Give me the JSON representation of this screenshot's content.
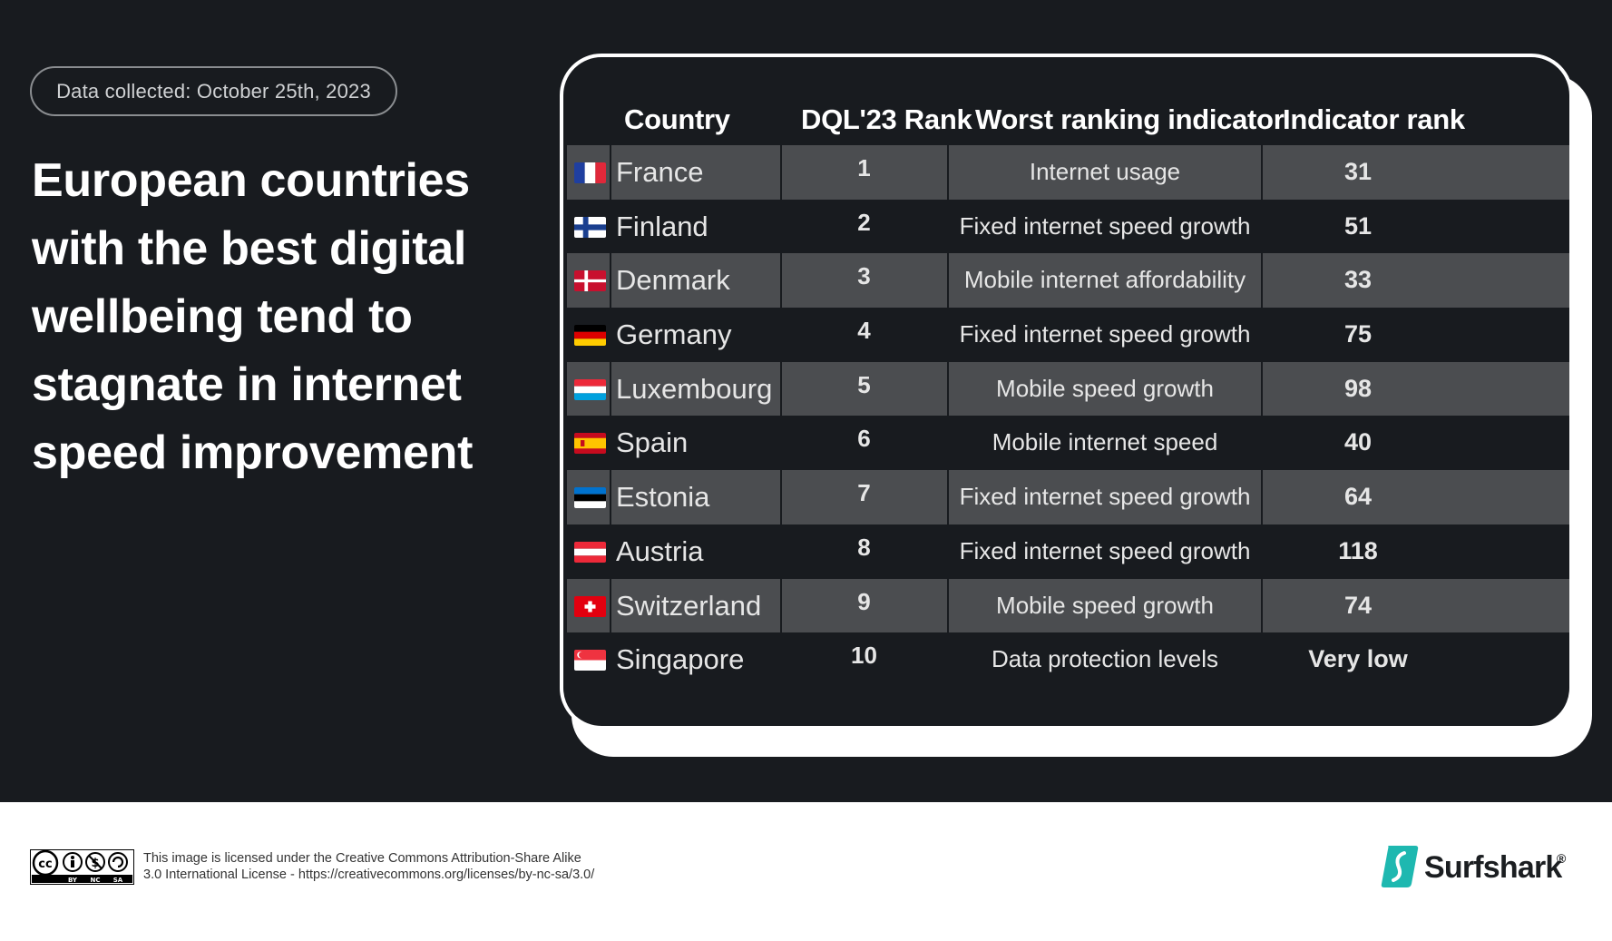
{
  "header": {
    "data_collected": "Data collected: October 25th, 2023",
    "headline_lines": [
      "European countries",
      "with the best digital",
      "wellbeing tend to",
      "stagnate in internet",
      "speed improvement"
    ]
  },
  "chart_data": {
    "type": "table",
    "columns": [
      "Country",
      "DQL'23 Rank",
      "Worst ranking indicator",
      "Indicator rank"
    ],
    "rows": [
      {
        "flag": "france-flag-icon",
        "country": "France",
        "rank": "1",
        "indicator": "Internet usage",
        "indicator_rank": "31"
      },
      {
        "flag": "finland-flag-icon",
        "country": "Finland",
        "rank": "2",
        "indicator": "Fixed internet speed growth",
        "indicator_rank": "51"
      },
      {
        "flag": "denmark-flag-icon",
        "country": "Denmark",
        "rank": "3",
        "indicator": "Mobile internet affordability",
        "indicator_rank": "33"
      },
      {
        "flag": "germany-flag-icon",
        "country": "Germany",
        "rank": "4",
        "indicator": "Fixed internet speed growth",
        "indicator_rank": "75"
      },
      {
        "flag": "luxembourg-flag-icon",
        "country": "Luxembourg",
        "rank": "5",
        "indicator": "Mobile speed growth",
        "indicator_rank": "98"
      },
      {
        "flag": "spain-flag-icon",
        "country": "Spain",
        "rank": "6",
        "indicator": "Mobile internet speed",
        "indicator_rank": "40"
      },
      {
        "flag": "estonia-flag-icon",
        "country": "Estonia",
        "rank": "7",
        "indicator": "Fixed internet speed growth",
        "indicator_rank": "64"
      },
      {
        "flag": "austria-flag-icon",
        "country": "Austria",
        "rank": "8",
        "indicator": "Fixed internet speed growth",
        "indicator_rank": "118"
      },
      {
        "flag": "switzerland-flag-icon",
        "country": "Switzerland",
        "rank": "9",
        "indicator": "Mobile speed growth",
        "indicator_rank": "74"
      },
      {
        "flag": "singapore-flag-icon",
        "country": "Singapore",
        "rank": "10",
        "indicator": "Data protection levels",
        "indicator_rank": "Very low"
      }
    ]
  },
  "colors": {
    "background": "#181b1f",
    "row_alt": "#4b4d50",
    "card_border": "#ffffff"
  },
  "footer": {
    "license_line1": "This image is licensed under the Creative Commons Attribution-Share Alike",
    "license_line2": "3.0 International License - https://creativecommons.org/licenses/by-nc-sa/3.0/",
    "cc_labels": [
      "BY",
      "NC",
      "SA"
    ],
    "brand_name": "Surfshark",
    "brand_mark": "®"
  }
}
